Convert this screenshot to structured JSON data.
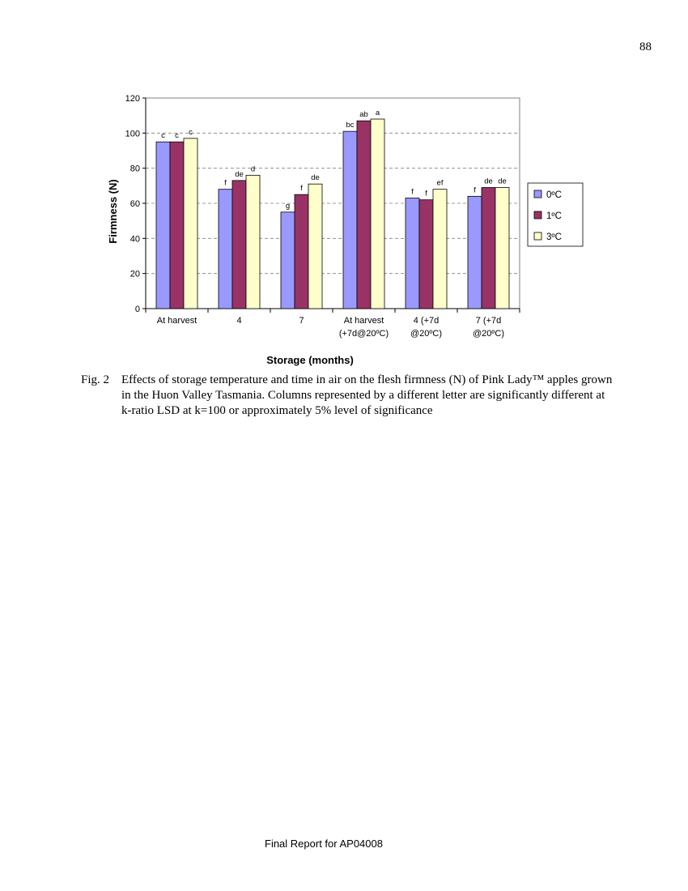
{
  "page": {
    "page_number": "88",
    "footer": "Final Report for AP04008"
  },
  "caption": {
    "label": "Fig. 2",
    "text": "Effects of storage temperature and time in air on the flesh firmness (N) of Pink Lady™ apples grown in the Huon Valley Tasmania. Columns represented by a different letter are significantly different at k-ratio LSD at k=100 or approximately 5% level of significance"
  },
  "chart_data": {
    "type": "bar",
    "categories": [
      [
        "At harvest"
      ],
      [
        "4"
      ],
      [
        "7"
      ],
      [
        "At harvest",
        "(+7d@20ºC)"
      ],
      [
        "4 (+7d",
        "@20ºC)"
      ],
      [
        "7 (+7d",
        "@20ºC)"
      ]
    ],
    "series": [
      {
        "name": "0ºC",
        "color": "#9999ff",
        "values": [
          95,
          68,
          55,
          101,
          63,
          64
        ],
        "letters": [
          "c",
          "f",
          "g",
          "bc",
          "f",
          "f"
        ]
      },
      {
        "name": "1ºC",
        "color": "#993366",
        "values": [
          95,
          73,
          65,
          107,
          62,
          69
        ],
        "letters": [
          "c",
          "de",
          "f",
          "ab",
          "f",
          "de"
        ]
      },
      {
        "name": "3ºC",
        "color": "#ffffcc",
        "values": [
          97,
          76,
          71,
          108,
          68,
          69
        ],
        "letters": [
          "c",
          "d",
          "de",
          "a",
          "ef",
          "de"
        ]
      }
    ],
    "xlabel": "Storage (months)",
    "ylabel": "Firmness (N)",
    "ylim": [
      0,
      120
    ],
    "yticks": [
      0,
      20,
      40,
      60,
      80,
      100,
      120
    ],
    "grid": true,
    "legend_position": "right"
  }
}
